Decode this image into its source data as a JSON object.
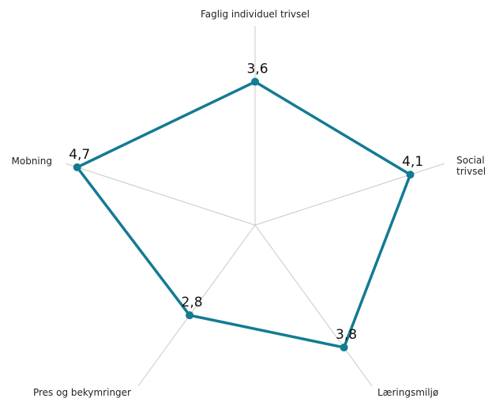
{
  "chart_data": {
    "type": "radar",
    "categories": [
      "Faglig individuel trivsel",
      "Social trivsel",
      "Læringsmiljø",
      "Pres og bekymringer",
      "Mobning"
    ],
    "values": [
      3.6,
      4.1,
      3.8,
      2.8,
      4.7
    ],
    "value_labels": [
      "3,6",
      "4,1",
      "3,8",
      "2,8",
      "4,7"
    ],
    "color": "#137b93",
    "rlim": [
      0,
      5
    ]
  }
}
